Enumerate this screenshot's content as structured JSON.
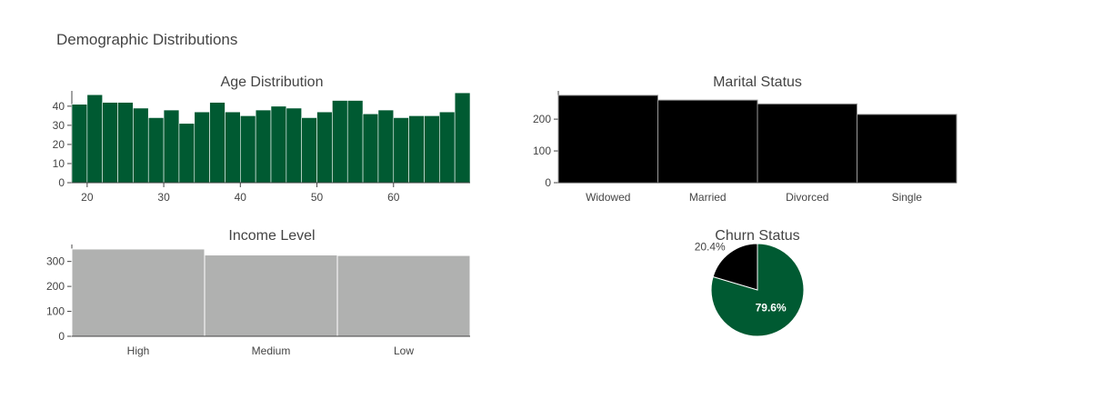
{
  "title": "Demographic Distributions",
  "chart_data": [
    {
      "type": "bar",
      "title": "Age Distribution",
      "xlabel": "",
      "ylabel": "",
      "bin_start": 18,
      "bin_width": 2,
      "values": [
        41,
        46,
        42,
        42,
        39,
        34,
        38,
        31,
        37,
        42,
        37,
        35,
        38,
        40,
        39,
        34,
        37,
        43,
        43,
        36,
        38,
        34,
        35,
        35,
        37,
        47
      ],
      "xlim": [
        18,
        70
      ],
      "ylim": [
        0,
        48
      ],
      "xticks": [
        20,
        30,
        40,
        50,
        60
      ],
      "yticks": [
        0,
        10,
        20,
        30,
        40
      ],
      "color": "#005a32"
    },
    {
      "type": "bar",
      "title": "Marital Status",
      "categories": [
        "Widowed",
        "Married",
        "Divorced",
        "Single"
      ],
      "values": [
        275,
        260,
        248,
        215
      ],
      "ylim": [
        0,
        289
      ],
      "yticks": [
        0,
        100,
        200
      ],
      "color": "#000000"
    },
    {
      "type": "bar",
      "title": "Income Level",
      "categories": [
        "High",
        "Medium",
        "Low"
      ],
      "values": [
        350,
        326,
        324
      ],
      "ylim": [
        0,
        368
      ],
      "yticks": [
        0,
        100,
        200,
        300
      ],
      "color": "#b0b1b0"
    },
    {
      "type": "pie",
      "title": "Churn Status",
      "values": [
        79.6,
        20.4
      ],
      "labels": [
        "79.6%",
        "20.4%"
      ],
      "colors": [
        "#005a32",
        "#000000"
      ]
    }
  ]
}
